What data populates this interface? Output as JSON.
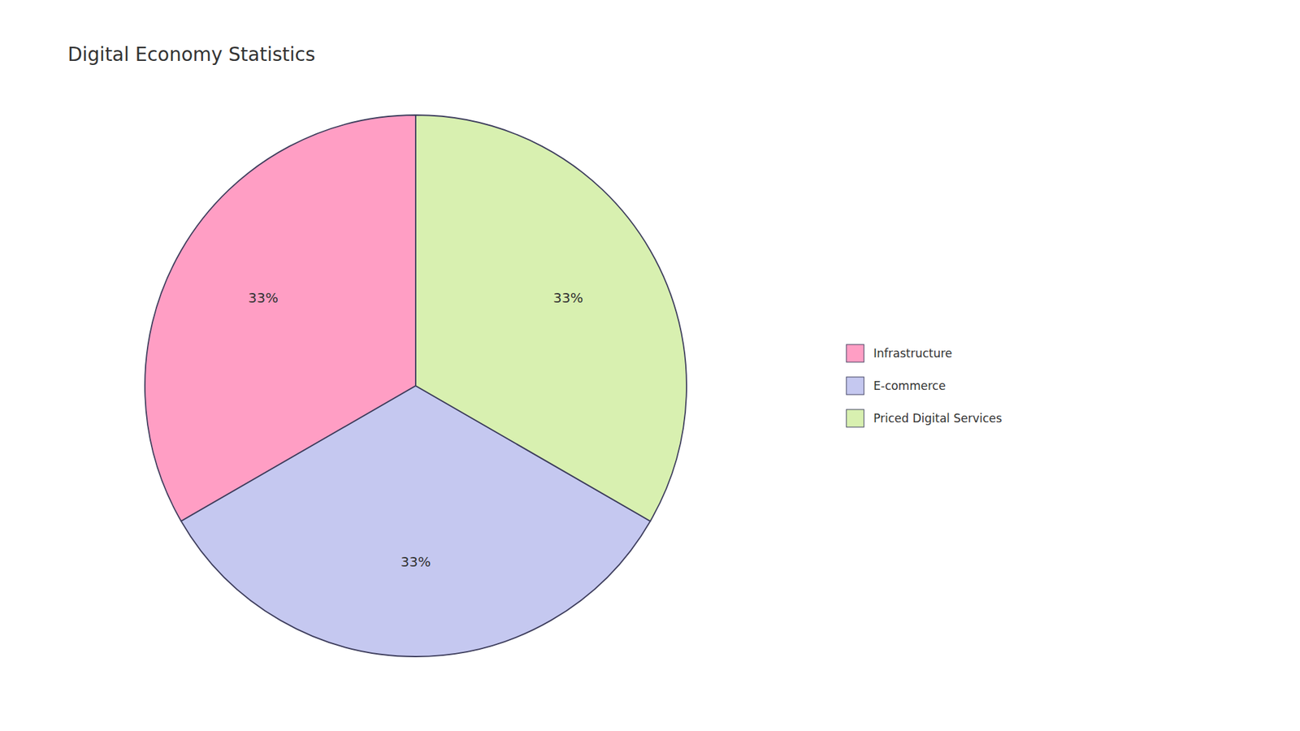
{
  "chart_data": {
    "type": "pie",
    "title": "Digital Economy Statistics",
    "categories": [
      "Infrastructure",
      "E-commerce",
      "Priced Digital Services"
    ],
    "values": [
      33.33,
      33.34,
      33.33
    ],
    "value_labels": [
      "33%",
      "33%",
      "33%"
    ],
    "colors": [
      "#FF9EC4",
      "#C5C8F0",
      "#D8F0B0"
    ],
    "data_labels": true,
    "legend": "right"
  }
}
